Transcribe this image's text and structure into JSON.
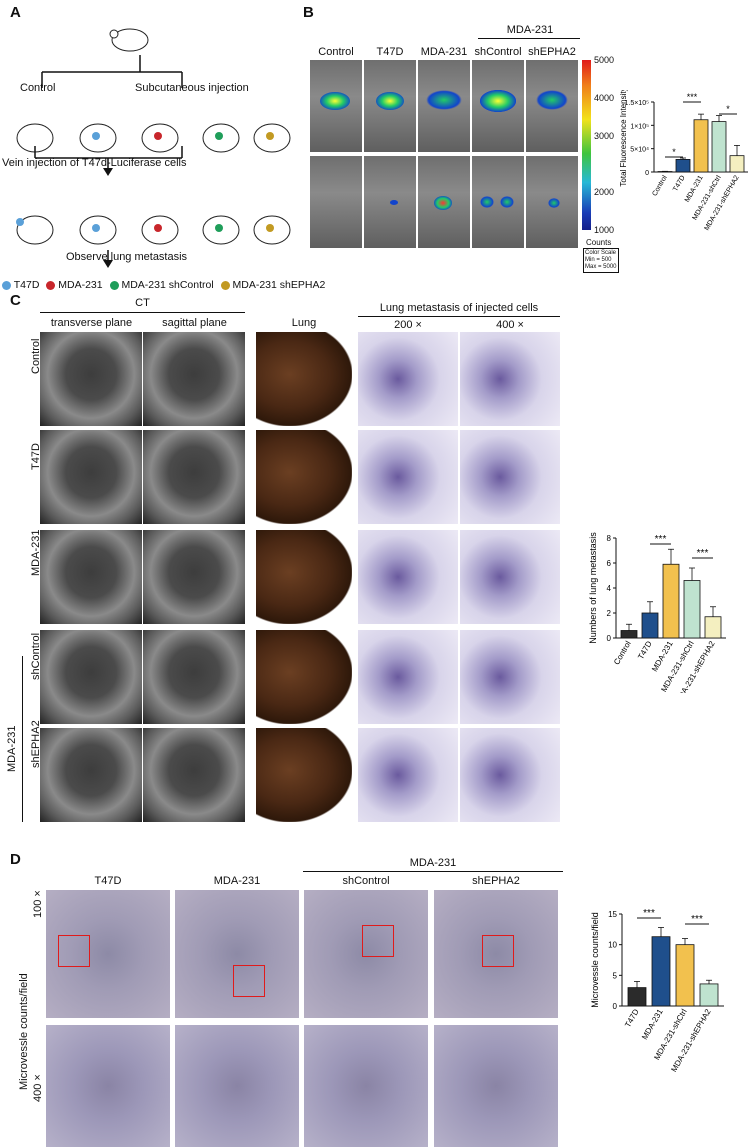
{
  "panels": {
    "a": "A",
    "b": "B",
    "c": "C",
    "d": "D"
  },
  "panel_a": {
    "control": "Control",
    "subcutaneous": "Subcutaneous injection",
    "vein": "Vein injection of  T47d-Luciferase cells",
    "observe": "Observe lung metastasis",
    "legend": [
      "T47D",
      "MDA-231",
      "MDA-231 shControl",
      "MDA-231 shEPHA2"
    ],
    "colors": [
      "#5aa0d8",
      "#c8262b",
      "#1f9e5a",
      "#c29a22"
    ]
  },
  "panel_b": {
    "group_header": "MDA-231",
    "cols": [
      "Control",
      "T47D",
      "MDA-231",
      "shControl",
      "shEPHA2"
    ],
    "colorbar_ticks": [
      "5000",
      "4000",
      "3000",
      "2000",
      "1000"
    ],
    "counts": "Counts",
    "color_scale": [
      "Color Scale",
      "Min = 500",
      "Max = 5000"
    ]
  },
  "panel_c": {
    "ct": "CT",
    "transverse": "transverse plane",
    "sagittal": "sagittal plane",
    "lung": "Lung",
    "metastasis": "Lung metastasis of injected cells",
    "mag200": "200 ×",
    "mag400": "400 ×",
    "rows": [
      "Control",
      "T47D",
      "MDA-231",
      "shControl",
      "shEPHA2"
    ],
    "group": "MDA-231"
  },
  "panel_d": {
    "cols": [
      "T47D",
      "MDA-231",
      "shControl",
      "shEPHA2"
    ],
    "group": "MDA-231",
    "ylabel": "Microvessle counts/field",
    "mag100": "100 ×",
    "mag400": "400 ×"
  },
  "chart_data": [
    {
      "type": "bar",
      "ylabel": "Total Fluorescence Intensity",
      "categories": [
        "Control",
        "T47D",
        "MDA-231",
        "MDA-231-shCtrl",
        "MDA-231-shEPHA2"
      ],
      "values": [
        1000,
        27000,
        112000,
        108000,
        35000
      ],
      "errors": [
        500,
        3000,
        12000,
        13000,
        22000
      ],
      "colors": [
        "#2b2b2b",
        "#1f4f8c",
        "#f2c14e",
        "#bfe3cf",
        "#f4efc0"
      ],
      "ylim": [
        0,
        150000
      ],
      "yticks": [
        "0",
        "5×10⁴",
        "1×10⁵",
        "1.5×10⁵"
      ],
      "sig": [
        "*",
        "***",
        "*"
      ]
    },
    {
      "type": "bar",
      "ylabel": "Numbers of lung metastasis",
      "categories": [
        "Control",
        "T47D",
        "MDA-231",
        "MDA-231-shCtrl",
        "MDA-231-shEPHA2"
      ],
      "values": [
        0.6,
        2.0,
        5.9,
        4.6,
        1.7
      ],
      "errors": [
        0.5,
        0.9,
        1.2,
        1.0,
        0.8
      ],
      "colors": [
        "#2b2b2b",
        "#1f4f8c",
        "#f2c14e",
        "#bfe3cf",
        "#f4efc0"
      ],
      "ylim": [
        0,
        8
      ],
      "yticks": [
        "0",
        "2",
        "4",
        "6",
        "8"
      ],
      "sig": [
        "***",
        "***"
      ]
    },
    {
      "type": "bar",
      "ylabel": "Microvessle counts/field",
      "categories": [
        "T47D",
        "MDA-231",
        "MDA-231-shCtrl",
        "MDA-231-shEPHA2"
      ],
      "values": [
        3.0,
        11.3,
        10.0,
        3.6
      ],
      "errors": [
        1.0,
        1.5,
        1.0,
        0.6
      ],
      "colors": [
        "#2b2b2b",
        "#1f4f8c",
        "#f2c14e",
        "#bfe3cf"
      ],
      "ylim": [
        0,
        15
      ],
      "yticks": [
        "0",
        "5",
        "10",
        "15"
      ],
      "sig": [
        "***",
        "***"
      ]
    }
  ]
}
